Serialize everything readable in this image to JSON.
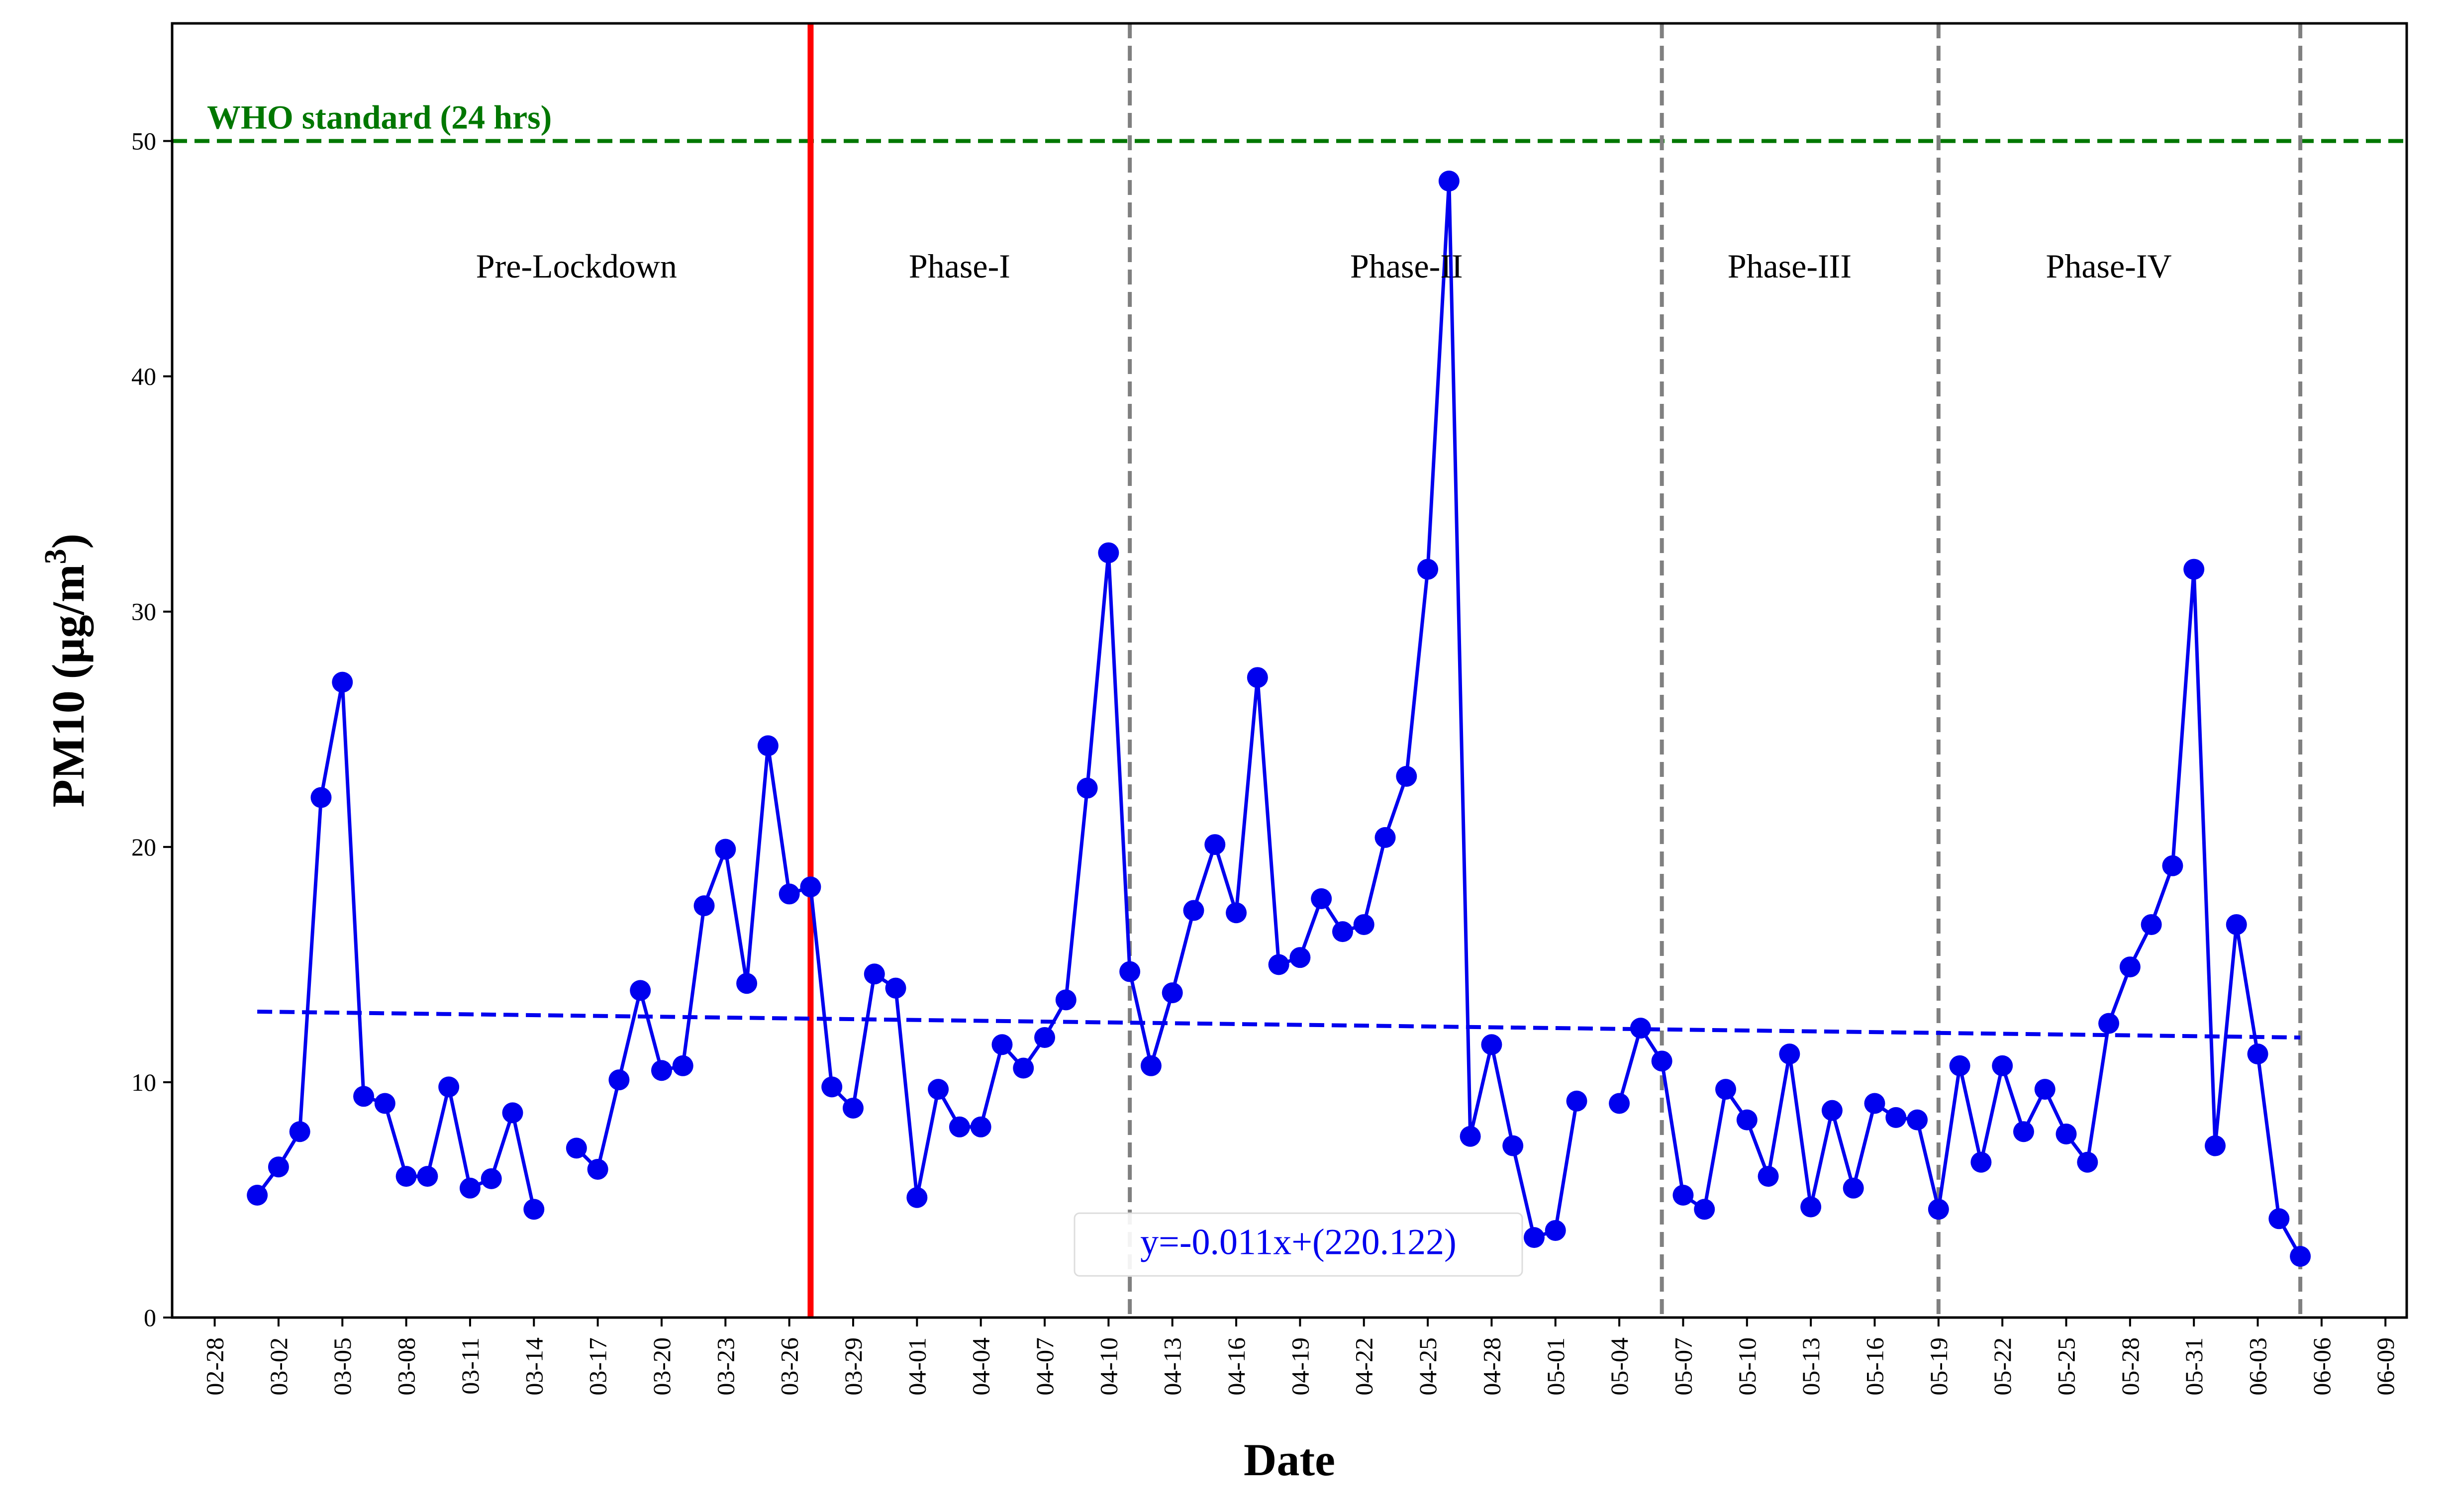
{
  "chart_data": {
    "type": "line",
    "xlabel": "Date",
    "ylabel": "PM10 (μg/m",
    "ylabel_superscript": "3",
    "ylabel_close": ")",
    "ylim": [
      0,
      55
    ],
    "y_ticks": [
      0,
      10,
      20,
      30,
      40,
      50
    ],
    "x_range": [
      "02-26",
      "06-10"
    ],
    "x_tick_labels": [
      "02-28",
      "03-02",
      "03-05",
      "03-08",
      "03-11",
      "03-14",
      "03-17",
      "03-20",
      "03-23",
      "03-26",
      "03-29",
      "04-01",
      "04-04",
      "04-07",
      "04-10",
      "04-13",
      "04-16",
      "04-19",
      "04-22",
      "04-25",
      "04-28",
      "05-01",
      "05-04",
      "05-07",
      "05-10",
      "05-13",
      "05-16",
      "05-19",
      "05-22",
      "05-25",
      "05-28",
      "05-31",
      "06-03",
      "06-06",
      "06-09"
    ],
    "grid": false,
    "series": [
      {
        "color": "#0000ee",
        "points": [
          [
            "03-01",
            5.2
          ],
          [
            "03-02",
            6.4
          ],
          [
            "03-03",
            7.9
          ],
          [
            "03-04",
            22.1
          ],
          [
            "03-05",
            27.0
          ],
          [
            "03-06",
            9.4
          ],
          [
            "03-07",
            9.1
          ],
          [
            "03-08",
            6.0
          ],
          [
            "03-09",
            6.0
          ],
          [
            "03-10",
            9.8
          ],
          [
            "03-11",
            5.5
          ],
          [
            "03-12",
            5.9
          ],
          [
            "03-13",
            8.7
          ],
          [
            "03-14",
            4.6
          ],
          [
            "03-15",
            null
          ],
          [
            "03-16",
            7.2
          ],
          [
            "03-17",
            6.3
          ],
          [
            "03-18",
            10.1
          ],
          [
            "03-19",
            13.9
          ],
          [
            "03-20",
            10.5
          ],
          [
            "03-21",
            10.7
          ],
          [
            "03-22",
            17.5
          ],
          [
            "03-23",
            19.9
          ],
          [
            "03-24",
            14.2
          ],
          [
            "03-25",
            24.3
          ],
          [
            "03-26",
            18.0
          ],
          [
            "03-27",
            18.3
          ],
          [
            "03-28",
            9.8
          ],
          [
            "03-29",
            8.9
          ],
          [
            "03-30",
            14.6
          ],
          [
            "03-31",
            14.0
          ],
          [
            "04-01",
            5.1
          ],
          [
            "04-02",
            9.7
          ],
          [
            "04-03",
            8.1
          ],
          [
            "04-04",
            8.1
          ],
          [
            "04-05",
            11.6
          ],
          [
            "04-06",
            10.6
          ],
          [
            "04-07",
            11.9
          ],
          [
            "04-08",
            13.5
          ],
          [
            "04-09",
            22.5
          ],
          [
            "04-10",
            32.5
          ],
          [
            "04-11",
            14.7
          ],
          [
            "04-12",
            10.7
          ],
          [
            "04-13",
            13.8
          ],
          [
            "04-14",
            17.3
          ],
          [
            "04-15",
            20.1
          ],
          [
            "04-16",
            17.2
          ],
          [
            "04-17",
            27.2
          ],
          [
            "04-18",
            15.0
          ],
          [
            "04-19",
            15.3
          ],
          [
            "04-20",
            17.8
          ],
          [
            "04-21",
            16.4
          ],
          [
            "04-22",
            16.7
          ],
          [
            "04-23",
            20.4
          ],
          [
            "04-24",
            23.0
          ],
          [
            "04-25",
            31.8
          ],
          [
            "04-26",
            48.3
          ],
          [
            "04-27",
            7.7
          ],
          [
            "04-28",
            11.6
          ],
          [
            "04-29",
            7.3
          ],
          [
            "04-30",
            3.4
          ],
          [
            "05-01",
            3.7
          ],
          [
            "05-02",
            9.2
          ],
          [
            "05-03",
            null
          ],
          [
            "05-04",
            9.1
          ],
          [
            "05-05",
            12.3
          ],
          [
            "05-06",
            10.9
          ],
          [
            "05-07",
            5.2
          ],
          [
            "05-08",
            4.6
          ],
          [
            "05-09",
            9.7
          ],
          [
            "05-10",
            8.4
          ],
          [
            "05-11",
            6.0
          ],
          [
            "05-12",
            11.2
          ],
          [
            "05-13",
            4.7
          ],
          [
            "05-14",
            8.8
          ],
          [
            "05-15",
            5.5
          ],
          [
            "05-16",
            9.1
          ],
          [
            "05-17",
            8.5
          ],
          [
            "05-18",
            8.4
          ],
          [
            "05-19",
            4.6
          ],
          [
            "05-20",
            10.7
          ],
          [
            "05-21",
            6.6
          ],
          [
            "05-22",
            10.7
          ],
          [
            "05-23",
            7.9
          ],
          [
            "05-24",
            9.7
          ],
          [
            "05-25",
            7.8
          ],
          [
            "05-26",
            6.6
          ],
          [
            "05-27",
            12.5
          ],
          [
            "05-28",
            14.9
          ],
          [
            "05-29",
            16.7
          ],
          [
            "05-30",
            19.2
          ],
          [
            "05-31",
            31.8
          ],
          [
            "06-01",
            7.3
          ],
          [
            "06-02",
            16.7
          ],
          [
            "06-03",
            11.2
          ],
          [
            "06-04",
            4.2
          ],
          [
            "06-05",
            2.6
          ]
        ]
      }
    ],
    "trend_line": {
      "color": "#0000ee",
      "style": "dashed",
      "start": [
        "03-01",
        13.0
      ],
      "end": [
        "06-05",
        11.9
      ],
      "equation": "y=-0.011x+(220.122)"
    },
    "threshold": {
      "value": 50,
      "label": "WHO standard (24 hrs)",
      "color": "#007700",
      "style": "dashed"
    },
    "lockdown_start": {
      "date": "03-27",
      "color": "#ff0000"
    },
    "phase_boundaries": {
      "dates": [
        "04-11",
        "05-06",
        "05-19",
        "06-05"
      ],
      "color": "#808080",
      "style": "dashed"
    },
    "phase_labels": [
      {
        "text": "Pre-Lockdown",
        "date": "03-16"
      },
      {
        "text": "Phase-I",
        "date": "04-03"
      },
      {
        "text": "Phase-II",
        "date": "04-24"
      },
      {
        "text": "Phase-III",
        "date": "05-12"
      },
      {
        "text": "Phase-IV",
        "date": "05-27"
      }
    ]
  }
}
